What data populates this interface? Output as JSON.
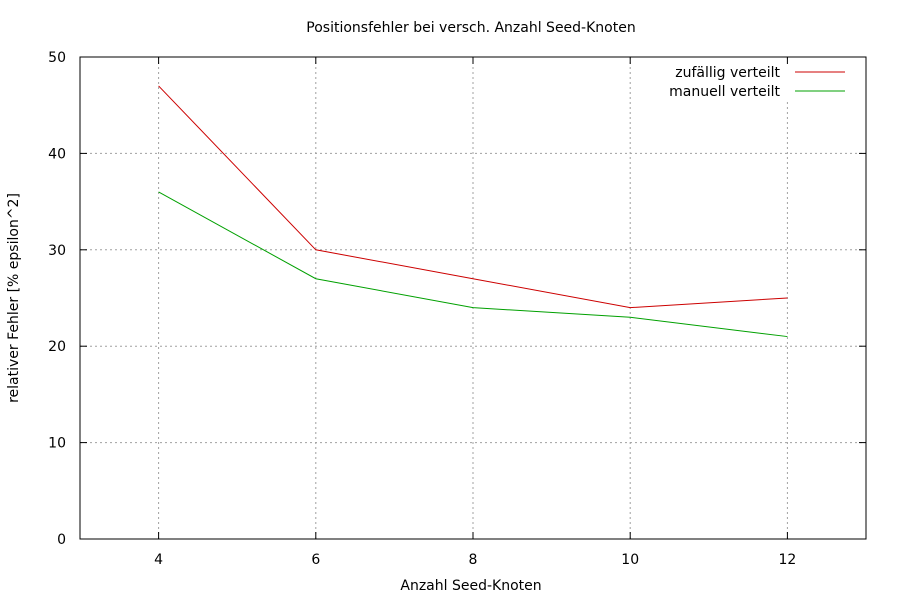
{
  "chart_data": {
    "type": "line",
    "title": "Positionsfehler bei versch. Anzahl Seed-Knoten",
    "xlabel": "Anzahl Seed-Knoten",
    "ylabel": "relativer Fehler [% epsilon^2]",
    "xlim": [
      3,
      13
    ],
    "ylim": [
      0,
      50
    ],
    "xticks": [
      4,
      6,
      8,
      10,
      12
    ],
    "yticks": [
      0,
      10,
      20,
      30,
      40,
      50
    ],
    "grid": true,
    "legend_position": "top-right",
    "x": [
      4,
      6,
      8,
      10,
      12
    ],
    "series": [
      {
        "name": "zufällig verteilt",
        "color": "#cc0000",
        "values": [
          47,
          30,
          27,
          24,
          25
        ]
      },
      {
        "name": "manuell verteilt",
        "color": "#00a000",
        "values": [
          36,
          27,
          24,
          23,
          21
        ]
      }
    ]
  }
}
